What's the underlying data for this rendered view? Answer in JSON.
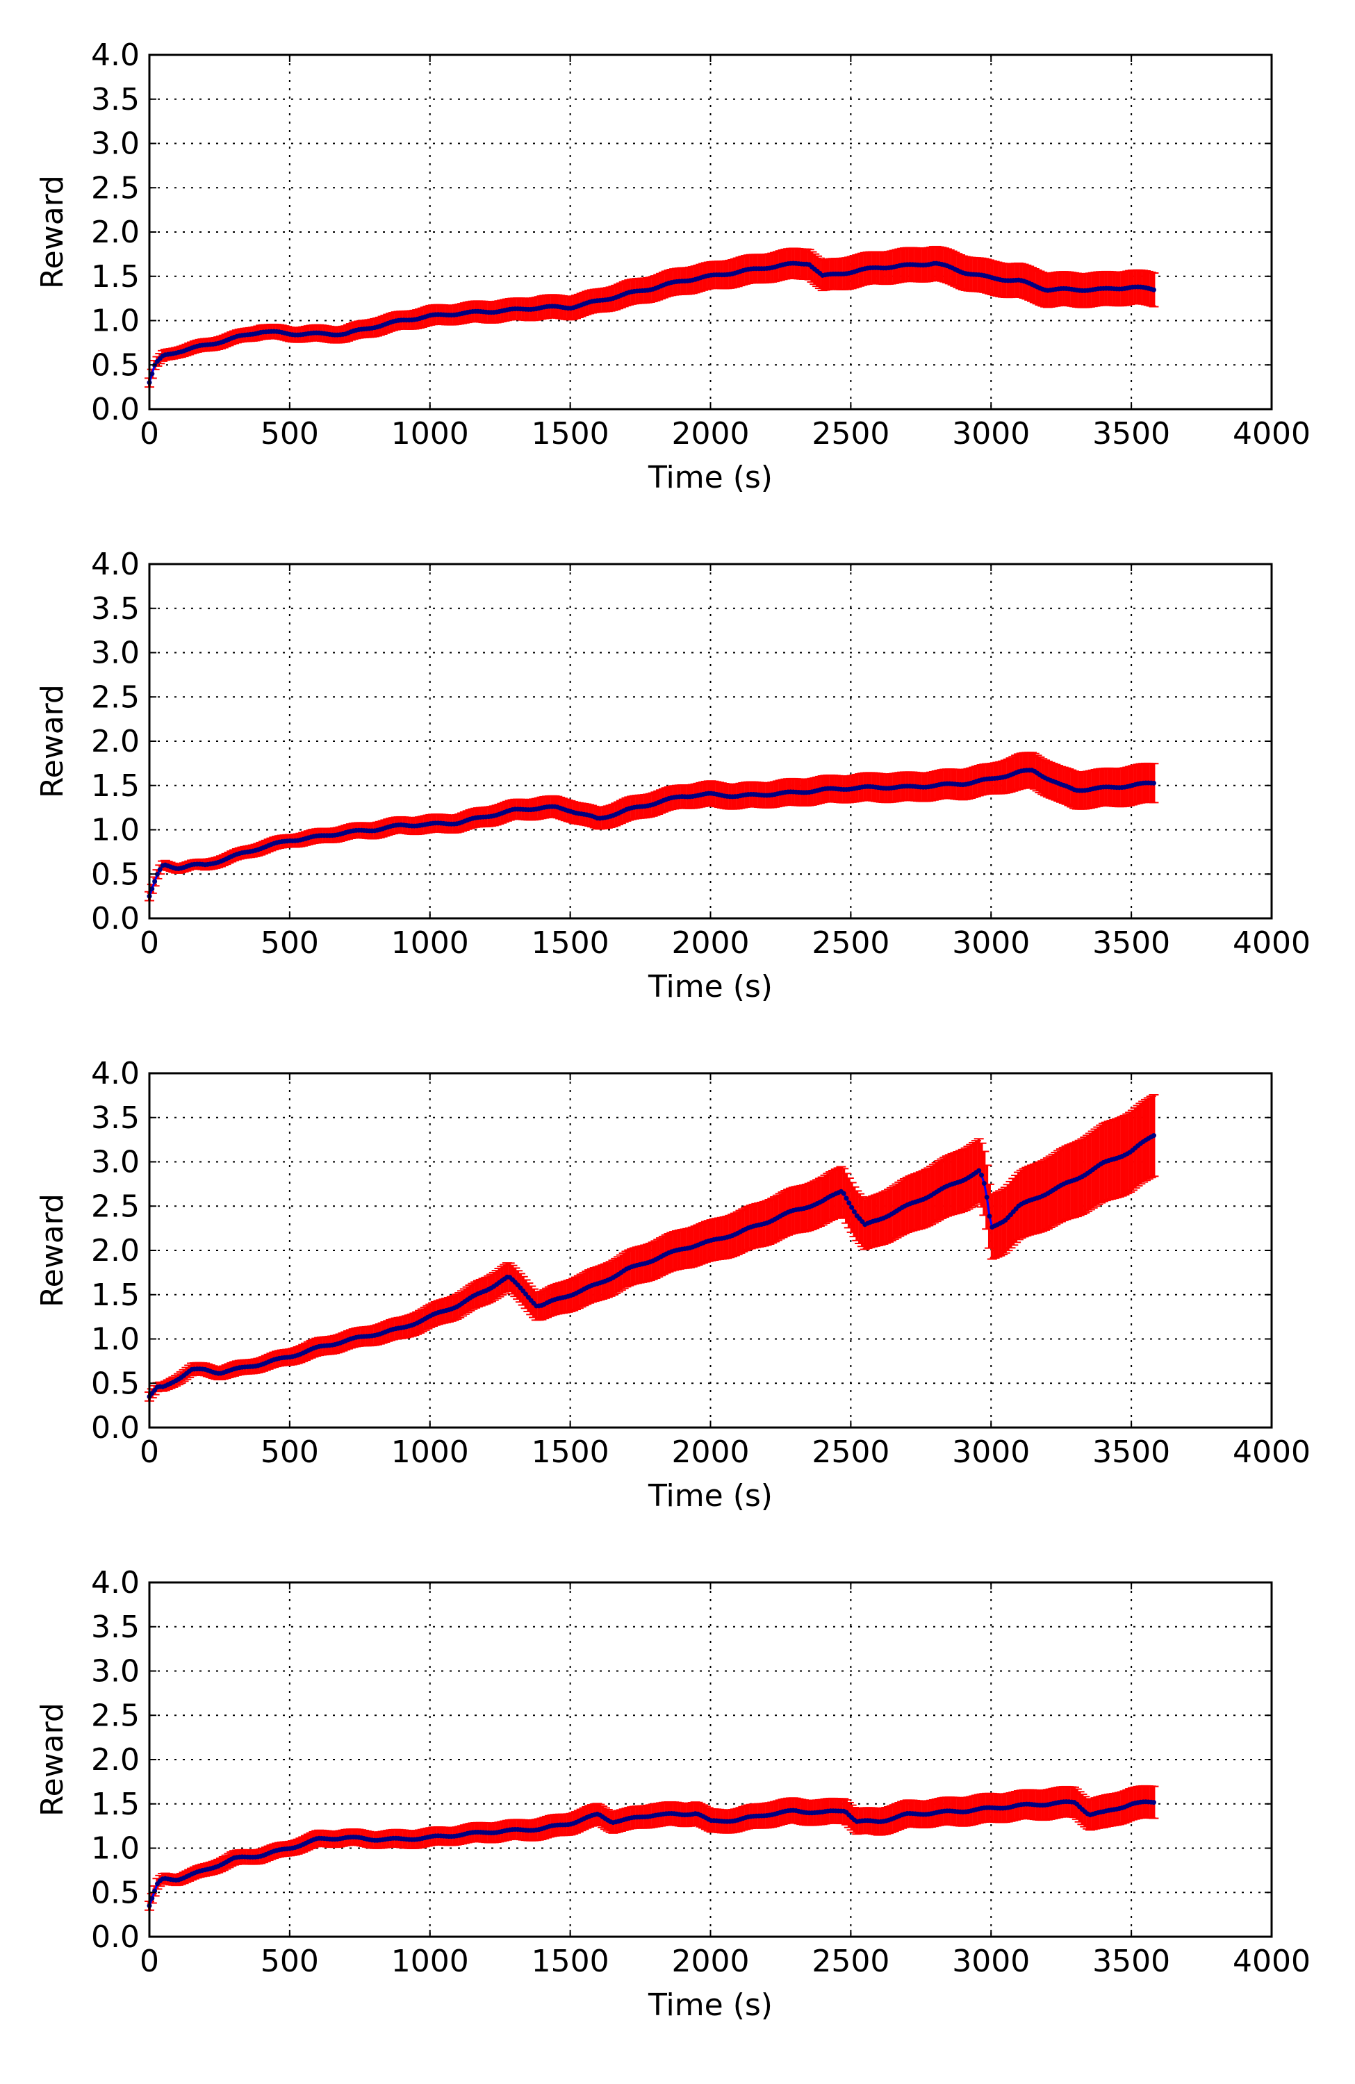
{
  "chart_data": [
    {
      "type": "line",
      "xlabel": "Time (s)",
      "ylabel": "Reward",
      "xlim": [
        0,
        4000
      ],
      "ylim": [
        0,
        4.0
      ],
      "xticks": [
        "0",
        "500",
        "1000",
        "1500",
        "2000",
        "2500",
        "3000",
        "3500",
        "4000"
      ],
      "yticks": [
        "0.0",
        "0.5",
        "1.0",
        "1.5",
        "2.0",
        "2.5",
        "3.0",
        "3.5",
        "4.0"
      ],
      "grid": true,
      "colors": {
        "mean": "#000080",
        "error": "#ff0000"
      },
      "series": [
        {
          "x": [
            0,
            20,
            50,
            100,
            200,
            300,
            400,
            500,
            600,
            700,
            800,
            900,
            1000,
            1100,
            1200,
            1300,
            1400,
            1500,
            1600,
            1700,
            1800,
            1900,
            2000,
            2100,
            2200,
            2300,
            2350,
            2400,
            2500,
            2600,
            2700,
            2800,
            2900,
            3000,
            3100,
            3200,
            3300,
            3400,
            3500,
            3580
          ],
          "y": [
            0.3,
            0.5,
            0.6,
            0.65,
            0.72,
            0.8,
            0.88,
            0.85,
            0.85,
            0.85,
            0.93,
            1.0,
            1.05,
            1.08,
            1.1,
            1.12,
            1.15,
            1.15,
            1.22,
            1.3,
            1.37,
            1.45,
            1.5,
            1.55,
            1.6,
            1.64,
            1.65,
            1.5,
            1.55,
            1.6,
            1.62,
            1.65,
            1.55,
            1.48,
            1.45,
            1.35,
            1.35,
            1.35,
            1.38,
            1.35
          ],
          "err": [
            0.05,
            0.05,
            0.06,
            0.06,
            0.07,
            0.07,
            0.08,
            0.08,
            0.09,
            0.09,
            0.1,
            0.1,
            0.11,
            0.11,
            0.12,
            0.12,
            0.13,
            0.13,
            0.13,
            0.14,
            0.14,
            0.15,
            0.15,
            0.16,
            0.16,
            0.17,
            0.17,
            0.17,
            0.18,
            0.18,
            0.19,
            0.19,
            0.19,
            0.19,
            0.19,
            0.19,
            0.19,
            0.19,
            0.19,
            0.19
          ]
        }
      ]
    },
    {
      "type": "line",
      "xlabel": "Time (s)",
      "ylabel": "Reward",
      "xlim": [
        0,
        4000
      ],
      "ylim": [
        0,
        4.0
      ],
      "xticks": [
        "0",
        "500",
        "1000",
        "1500",
        "2000",
        "2500",
        "3000",
        "3500",
        "4000"
      ],
      "yticks": [
        "0.0",
        "0.5",
        "1.0",
        "1.5",
        "2.0",
        "2.5",
        "3.0",
        "3.5",
        "4.0"
      ],
      "grid": true,
      "colors": {
        "mean": "#000080",
        "error": "#ff0000"
      },
      "series": [
        {
          "x": [
            0,
            30,
            50,
            100,
            150,
            200,
            300,
            400,
            500,
            600,
            700,
            800,
            900,
            1000,
            1100,
            1200,
            1300,
            1400,
            1450,
            1500,
            1600,
            1700,
            1800,
            1900,
            2000,
            2100,
            2200,
            2300,
            2400,
            2500,
            2600,
            2700,
            2800,
            2900,
            3000,
            3100,
            3150,
            3250,
            3300,
            3400,
            3500,
            3580
          ],
          "y": [
            0.25,
            0.5,
            0.6,
            0.57,
            0.6,
            0.6,
            0.7,
            0.8,
            0.88,
            0.92,
            0.97,
            1.0,
            1.05,
            1.06,
            1.08,
            1.15,
            1.22,
            1.25,
            1.25,
            1.22,
            1.12,
            1.22,
            1.3,
            1.38,
            1.4,
            1.38,
            1.4,
            1.42,
            1.45,
            1.47,
            1.48,
            1.48,
            1.5,
            1.52,
            1.57,
            1.65,
            1.67,
            1.5,
            1.45,
            1.47,
            1.5,
            1.53
          ],
          "err": [
            0.05,
            0.05,
            0.05,
            0.05,
            0.05,
            0.06,
            0.06,
            0.07,
            0.07,
            0.08,
            0.08,
            0.09,
            0.09,
            0.1,
            0.1,
            0.11,
            0.11,
            0.12,
            0.12,
            0.12,
            0.12,
            0.13,
            0.13,
            0.13,
            0.14,
            0.14,
            0.14,
            0.15,
            0.15,
            0.15,
            0.16,
            0.16,
            0.16,
            0.17,
            0.17,
            0.2,
            0.2,
            0.2,
            0.21,
            0.21,
            0.22,
            0.22
          ]
        }
      ]
    },
    {
      "type": "line",
      "xlabel": "Time (s)",
      "ylabel": "Reward",
      "xlim": [
        0,
        4000
      ],
      "ylim": [
        0,
        4.0
      ],
      "xticks": [
        "0",
        "500",
        "1000",
        "1500",
        "2000",
        "2500",
        "3000",
        "3500",
        "4000"
      ],
      "yticks": [
        "0.0",
        "0.5",
        "1.0",
        "1.5",
        "2.0",
        "2.5",
        "3.0",
        "3.5",
        "4.0"
      ],
      "grid": true,
      "colors": {
        "mean": "#000080",
        "error": "#ff0000"
      },
      "series": [
        {
          "x": [
            0,
            30,
            50,
            100,
            150,
            200,
            250,
            300,
            400,
            500,
            600,
            700,
            800,
            900,
            1000,
            1100,
            1200,
            1250,
            1280,
            1330,
            1380,
            1400,
            1500,
            1600,
            1700,
            1800,
            1900,
            2000,
            2100,
            2200,
            2300,
            2400,
            2470,
            2520,
            2550,
            2600,
            2700,
            2800,
            2900,
            2960,
            2980,
            3000,
            3050,
            3100,
            3200,
            3300,
            3400,
            3500,
            3580
          ],
          "y": [
            0.35,
            0.45,
            0.45,
            0.55,
            0.65,
            0.65,
            0.62,
            0.65,
            0.72,
            0.8,
            0.9,
            0.98,
            1.05,
            1.12,
            1.25,
            1.38,
            1.55,
            1.65,
            1.7,
            1.55,
            1.38,
            1.38,
            1.5,
            1.62,
            1.78,
            1.9,
            2.02,
            2.1,
            2.2,
            2.32,
            2.45,
            2.55,
            2.68,
            2.4,
            2.28,
            2.35,
            2.5,
            2.65,
            2.8,
            2.9,
            2.7,
            2.25,
            2.35,
            2.5,
            2.65,
            2.8,
            2.98,
            3.12,
            3.3
          ],
          "err": [
            0.05,
            0.05,
            0.05,
            0.06,
            0.07,
            0.07,
            0.07,
            0.08,
            0.08,
            0.09,
            0.1,
            0.1,
            0.11,
            0.12,
            0.13,
            0.14,
            0.15,
            0.16,
            0.16,
            0.16,
            0.16,
            0.16,
            0.18,
            0.19,
            0.2,
            0.21,
            0.22,
            0.23,
            0.24,
            0.25,
            0.26,
            0.27,
            0.28,
            0.28,
            0.28,
            0.29,
            0.31,
            0.33,
            0.35,
            0.36,
            0.36,
            0.36,
            0.37,
            0.38,
            0.4,
            0.42,
            0.44,
            0.45,
            0.46
          ]
        }
      ]
    },
    {
      "type": "line",
      "xlabel": "Time (s)",
      "ylabel": "Reward",
      "xlim": [
        0,
        4000
      ],
      "ylim": [
        0,
        4.0
      ],
      "xticks": [
        "0",
        "500",
        "1000",
        "1500",
        "2000",
        "2500",
        "3000",
        "3500",
        "4000"
      ],
      "yticks": [
        "0.0",
        "0.5",
        "1.0",
        "1.5",
        "2.0",
        "2.5",
        "3.0",
        "3.5",
        "4.0"
      ],
      "grid": true,
      "colors": {
        "mean": "#000080",
        "error": "#ff0000"
      },
      "series": [
        {
          "x": [
            0,
            30,
            50,
            100,
            200,
            300,
            400,
            500,
            600,
            700,
            800,
            900,
            1000,
            1100,
            1200,
            1300,
            1400,
            1500,
            1600,
            1650,
            1700,
            1800,
            1900,
            1950,
            2000,
            2100,
            2200,
            2300,
            2400,
            2480,
            2520,
            2600,
            2700,
            2800,
            2900,
            3000,
            3100,
            3200,
            3300,
            3350,
            3400,
            3500,
            3580
          ],
          "y": [
            0.35,
            0.6,
            0.65,
            0.65,
            0.75,
            0.88,
            0.92,
            1.0,
            1.1,
            1.12,
            1.1,
            1.1,
            1.12,
            1.15,
            1.18,
            1.2,
            1.22,
            1.28,
            1.38,
            1.3,
            1.32,
            1.38,
            1.38,
            1.4,
            1.3,
            1.32,
            1.38,
            1.42,
            1.4,
            1.43,
            1.3,
            1.3,
            1.38,
            1.4,
            1.42,
            1.45,
            1.48,
            1.5,
            1.52,
            1.38,
            1.4,
            1.5,
            1.52
          ],
          "err": [
            0.05,
            0.06,
            0.06,
            0.06,
            0.07,
            0.08,
            0.08,
            0.08,
            0.09,
            0.09,
            0.09,
            0.1,
            0.1,
            0.1,
            0.11,
            0.11,
            0.12,
            0.12,
            0.12,
            0.12,
            0.12,
            0.13,
            0.13,
            0.13,
            0.13,
            0.13,
            0.14,
            0.14,
            0.14,
            0.14,
            0.14,
            0.15,
            0.15,
            0.15,
            0.16,
            0.16,
            0.16,
            0.17,
            0.17,
            0.17,
            0.18,
            0.18,
            0.18
          ]
        }
      ]
    }
  ]
}
